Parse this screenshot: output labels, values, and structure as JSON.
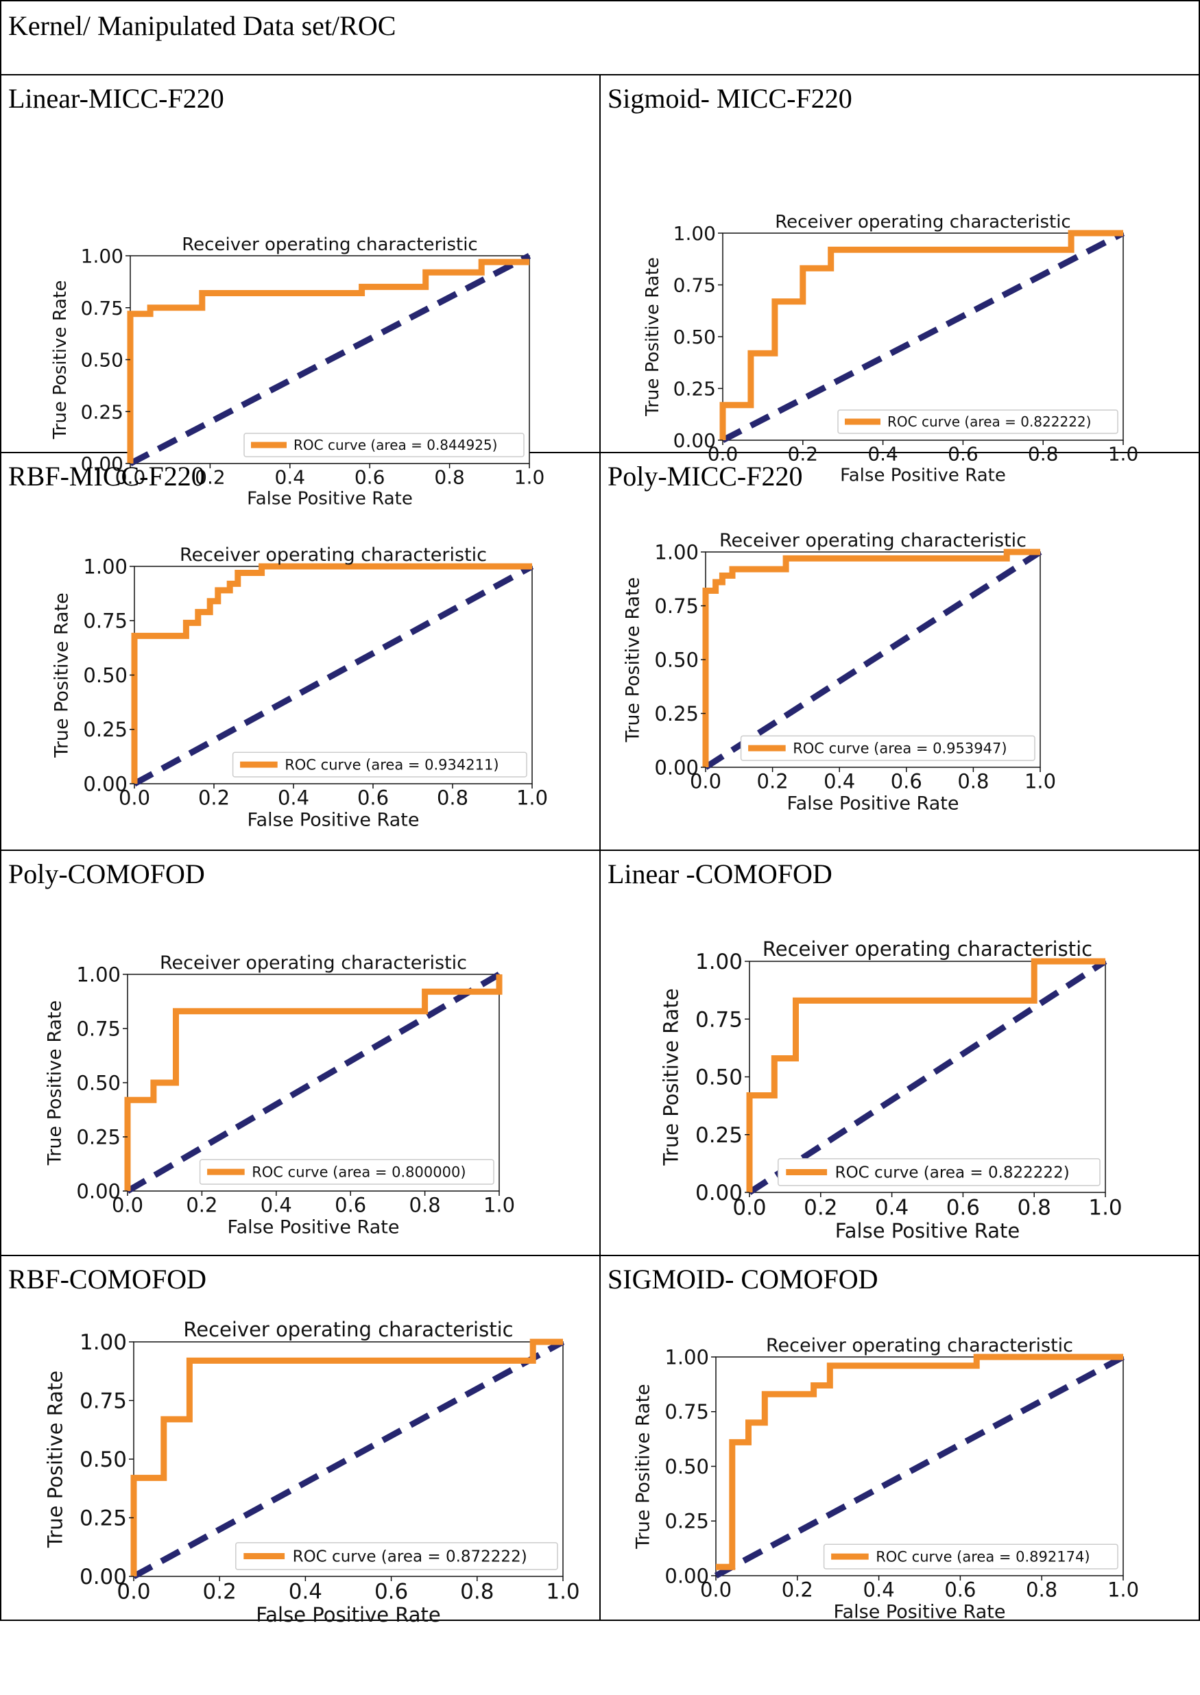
{
  "table": {
    "header": "Kernel/ Manipulated Data set/ROC"
  },
  "colors": {
    "roc": "#f28e2b",
    "diagonal": "#26266f"
  },
  "chart_data": [
    {
      "type": "line",
      "cell_label": "Linear-MICC-F220",
      "title": "Receiver operating characteristic",
      "xlabel": "False Positive Rate",
      "ylabel": "True Positive Rate",
      "xlim": [
        0,
        1
      ],
      "ylim": [
        0,
        1
      ],
      "xticks": [
        "0.0",
        "0.2",
        "0.4",
        "0.6",
        "0.8",
        "1.0"
      ],
      "yticks": [
        "0.00",
        "0.25",
        "0.50",
        "0.75",
        "1.00"
      ],
      "legend_label": "ROC curve (area = 0.844925)",
      "legend_loc": "lower-right",
      "series": [
        {
          "name": "ROC curve",
          "x": [
            0,
            0,
            0.05,
            0.05,
            0.18,
            0.18,
            0.58,
            0.58,
            0.74,
            0.74,
            0.88,
            0.88,
            1
          ],
          "y": [
            0,
            0.72,
            0.72,
            0.75,
            0.75,
            0.82,
            0.82,
            0.85,
            0.85,
            0.92,
            0.92,
            0.97,
            0.97
          ]
        },
        {
          "name": "chance",
          "x": [
            0,
            1
          ],
          "y": [
            0,
            1
          ]
        }
      ]
    },
    {
      "type": "line",
      "cell_label": "Sigmoid- MICC-F220",
      "title": "Receiver operating characteristic",
      "xlabel": "False Positive Rate",
      "ylabel": "True Positive Rate",
      "xlim": [
        0,
        1
      ],
      "ylim": [
        0,
        1
      ],
      "xticks": [
        "0.0",
        "0.2",
        "0.4",
        "0.6",
        "0.8",
        "1.0"
      ],
      "yticks": [
        "0.00",
        "0.25",
        "0.50",
        "0.75",
        "1.00"
      ],
      "legend_label": "ROC curve (area = 0.822222)",
      "legend_loc": "lower-right",
      "series": [
        {
          "name": "ROC curve",
          "x": [
            0,
            0,
            0.07,
            0.07,
            0.13,
            0.13,
            0.2,
            0.2,
            0.27,
            0.27,
            0.87,
            0.87,
            1
          ],
          "y": [
            0,
            0.17,
            0.17,
            0.42,
            0.42,
            0.67,
            0.67,
            0.83,
            0.83,
            0.92,
            0.92,
            1,
            1
          ]
        },
        {
          "name": "chance",
          "x": [
            0,
            1
          ],
          "y": [
            0,
            1
          ]
        }
      ]
    },
    {
      "type": "line",
      "cell_label": "RBF-MICC-F220",
      "title": "Receiver operating characteristic",
      "xlabel": "False Positive Rate",
      "ylabel": "True Positive Rate",
      "xlim": [
        0,
        1
      ],
      "ylim": [
        0,
        1
      ],
      "xticks": [
        "0.0",
        "0.2",
        "0.4",
        "0.6",
        "0.8",
        "1.0"
      ],
      "yticks": [
        "0.00",
        "0.25",
        "0.50",
        "0.75",
        "1.00"
      ],
      "legend_label": "ROC curve (area = 0.934211)",
      "legend_loc": "lower-right",
      "series": [
        {
          "name": "ROC curve",
          "x": [
            0,
            0,
            0.13,
            0.13,
            0.16,
            0.16,
            0.19,
            0.19,
            0.21,
            0.21,
            0.24,
            0.24,
            0.26,
            0.26,
            0.32,
            0.32,
            1
          ],
          "y": [
            0,
            0.68,
            0.68,
            0.74,
            0.74,
            0.79,
            0.79,
            0.84,
            0.84,
            0.89,
            0.89,
            0.92,
            0.92,
            0.97,
            0.97,
            1,
            1
          ]
        },
        {
          "name": "chance",
          "x": [
            0,
            1
          ],
          "y": [
            0,
            1
          ]
        }
      ]
    },
    {
      "type": "line",
      "cell_label": "Poly-MICC-F220",
      "title": "Receiver operating characteristic",
      "xlabel": "False Positive Rate",
      "ylabel": "True Positive Rate",
      "xlim": [
        0,
        1
      ],
      "ylim": [
        0,
        1
      ],
      "xticks": [
        "0.0",
        "0.2",
        "0.4",
        "0.6",
        "0.8",
        "1.0"
      ],
      "yticks": [
        "0.00",
        "0.25",
        "0.50",
        "0.75",
        "1.00"
      ],
      "legend_label": "ROC curve (area = 0.953947)",
      "legend_loc": "lower-right",
      "series": [
        {
          "name": "ROC curve",
          "x": [
            0,
            0,
            0.03,
            0.03,
            0.05,
            0.05,
            0.08,
            0.08,
            0.24,
            0.24,
            0.9,
            0.9,
            1
          ],
          "y": [
            0,
            0.82,
            0.82,
            0.86,
            0.86,
            0.89,
            0.89,
            0.92,
            0.92,
            0.97,
            0.97,
            1,
            1
          ]
        },
        {
          "name": "chance",
          "x": [
            0,
            1
          ],
          "y": [
            0,
            1
          ]
        }
      ]
    },
    {
      "type": "line",
      "cell_label": "Poly-COMOFOD",
      "title": "Receiver operating characteristic",
      "xlabel": "False Positive Rate",
      "ylabel": "True Positive Rate",
      "xlim": [
        0,
        1
      ],
      "ylim": [
        0,
        1
      ],
      "xticks": [
        "0.0",
        "0.2",
        "0.4",
        "0.6",
        "0.8",
        "1.0"
      ],
      "yticks": [
        "0.00",
        "0.25",
        "0.50",
        "0.75",
        "1.00"
      ],
      "legend_label": "ROC curve (area = 0.800000)",
      "legend_loc": "lower-right",
      "series": [
        {
          "name": "ROC curve",
          "x": [
            0,
            0,
            0.07,
            0.07,
            0.13,
            0.13,
            0.8,
            0.8,
            1,
            1
          ],
          "y": [
            0,
            0.42,
            0.42,
            0.5,
            0.5,
            0.83,
            0.83,
            0.92,
            0.92,
            1
          ]
        },
        {
          "name": "chance",
          "x": [
            0,
            1
          ],
          "y": [
            0,
            1
          ]
        }
      ]
    },
    {
      "type": "line",
      "cell_label": "Linear -COMOFOD",
      "title": "Receiver operating characteristic",
      "xlabel": "False Positive Rate",
      "ylabel": "True Positive Rate",
      "xlim": [
        0,
        1
      ],
      "ylim": [
        0,
        1
      ],
      "xticks": [
        "0.0",
        "0.2",
        "0.4",
        "0.6",
        "0.8",
        "1.0"
      ],
      "yticks": [
        "0.00",
        "0.25",
        "0.50",
        "0.75",
        "1.00"
      ],
      "legend_label": "ROC curve (area = 0.822222)",
      "legend_loc": "lower-right",
      "series": [
        {
          "name": "ROC curve",
          "x": [
            0,
            0,
            0.07,
            0.07,
            0.13,
            0.13,
            0.8,
            0.8,
            1
          ],
          "y": [
            0,
            0.42,
            0.42,
            0.58,
            0.58,
            0.83,
            0.83,
            1,
            1
          ]
        },
        {
          "name": "chance",
          "x": [
            0,
            1
          ],
          "y": [
            0,
            1
          ]
        }
      ]
    },
    {
      "type": "line",
      "cell_label": "RBF-COMOFOD",
      "title": "Receiver operating characteristic",
      "xlabel": "False Positive Rate",
      "ylabel": "True Positive Rate",
      "xlim": [
        0,
        1
      ],
      "ylim": [
        0,
        1
      ],
      "xticks": [
        "0.0",
        "0.2",
        "0.4",
        "0.6",
        "0.8",
        "1.0"
      ],
      "yticks": [
        "0.00",
        "0.25",
        "0.50",
        "0.75",
        "1.00"
      ],
      "legend_label": "ROC curve (area = 0.872222)",
      "legend_loc": "lower-right",
      "series": [
        {
          "name": "ROC curve",
          "x": [
            0,
            0,
            0.07,
            0.07,
            0.13,
            0.13,
            0.93,
            0.93,
            1
          ],
          "y": [
            0,
            0.42,
            0.42,
            0.67,
            0.67,
            0.92,
            0.92,
            1,
            1
          ]
        },
        {
          "name": "chance",
          "x": [
            0,
            1
          ],
          "y": [
            0,
            1
          ]
        }
      ]
    },
    {
      "type": "line",
      "cell_label": "SIGMOID- COMOFOD",
      "title": "Receiver operating characteristic",
      "xlabel": "False Positive Rate",
      "ylabel": "True Positive Rate",
      "xlim": [
        0,
        1
      ],
      "ylim": [
        0,
        1
      ],
      "xticks": [
        "0.0",
        "0.2",
        "0.4",
        "0.6",
        "0.8",
        "1.0"
      ],
      "yticks": [
        "0.00",
        "0.25",
        "0.50",
        "0.75",
        "1.00"
      ],
      "legend_label": "ROC curve (area = 0.892174)",
      "legend_loc": "lower-right",
      "series": [
        {
          "name": "ROC curve",
          "x": [
            0,
            0.04,
            0.04,
            0.08,
            0.08,
            0.12,
            0.12,
            0.24,
            0.24,
            0.28,
            0.28,
            0.64,
            0.64,
            1
          ],
          "y": [
            0.04,
            0.04,
            0.61,
            0.61,
            0.7,
            0.7,
            0.83,
            0.83,
            0.87,
            0.87,
            0.96,
            0.96,
            1,
            1
          ]
        },
        {
          "name": "chance",
          "x": [
            0,
            1
          ],
          "y": [
            0,
            1
          ]
        }
      ]
    }
  ]
}
